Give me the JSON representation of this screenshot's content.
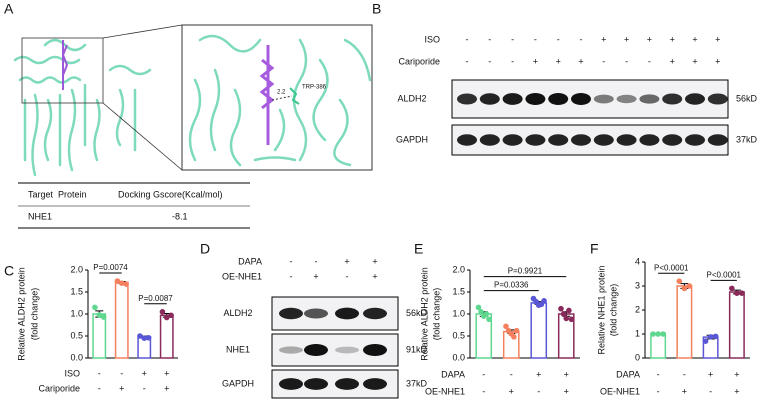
{
  "panels": [
    "A",
    "B",
    "C",
    "D",
    "E",
    "F"
  ],
  "docking": {
    "labels": [
      "TRP-386",
      "2.2"
    ],
    "table": {
      "header": [
        "Target  Protein",
        "Docking Gscore(Kcal/mol)"
      ],
      "rows": [
        [
          "NHE1",
          -8.1
        ]
      ]
    }
  },
  "blot_b": {
    "conditions": [
      {
        "name": "ISO",
        "signs": [
          "-",
          "-",
          "-",
          "-",
          "-",
          "-",
          "+",
          "+",
          "+",
          "+",
          "+",
          "+"
        ]
      },
      {
        "name": "Cariporide",
        "signs": [
          "-",
          "-",
          "-",
          "+",
          "+",
          "+",
          "-",
          "-",
          "-",
          "+",
          "+",
          "+"
        ]
      }
    ],
    "bands": [
      {
        "name": "ALDH2",
        "size": "56kD"
      },
      {
        "name": "GAPDH",
        "size": "37kD"
      }
    ]
  },
  "blot_d": {
    "conditions": [
      {
        "name": "DAPA",
        "signs": [
          "-",
          "-",
          "+",
          "+"
        ]
      },
      {
        "name": "OE-NHE1",
        "signs": [
          "-",
          "+",
          "-",
          "+"
        ]
      }
    ],
    "bands": [
      {
        "name": "ALDH2",
        "size": "56kD"
      },
      {
        "name": "NHE1",
        "size": "91kD"
      },
      {
        "name": "GAPDH",
        "size": "37kD"
      }
    ]
  },
  "chart_data": [
    {
      "type": "bar",
      "ylabel": [
        "Relative ALDH2 protein",
        "(fold change)"
      ],
      "values": [
        1.0,
        1.72,
        0.48,
        0.97
      ],
      "errors": [
        0.07,
        0.02,
        0.02,
        0.04
      ],
      "points": [
        [
          1.15,
          0.98,
          0.93
        ],
        [
          1.75,
          1.7,
          1.68
        ],
        [
          0.5,
          0.45,
          0.46
        ],
        [
          1.05,
          0.92,
          0.97
        ]
      ],
      "colors": [
        "#5ed88f",
        "#f4805e",
        "#5a57d6",
        "#8a2a5a"
      ],
      "ylim": [
        0,
        2
      ],
      "yticks": [
        {
          "value": 0,
          "label": "0.0"
        },
        {
          "value": 0.5,
          "label": "0.5"
        },
        {
          "value": 1,
          "label": "1.0"
        },
        {
          "value": 1.5,
          "label": "1.5"
        },
        {
          "value": 2,
          "label": "2.0"
        }
      ],
      "conditions": [
        {
          "name": "ISO",
          "signs": [
            "-",
            "-",
            "+",
            "+"
          ]
        },
        {
          "name": "Cariporide",
          "signs": [
            "-",
            "+",
            "-",
            "+"
          ]
        }
      ],
      "annotations": [
        {
          "label": "P=0.0074",
          "groups": [
            0,
            1
          ]
        },
        {
          "label": "P=0.0087",
          "groups": [
            2,
            3
          ]
        }
      ]
    },
    {
      "type": "bar",
      "ylabel": [
        "Relative ALDH2 protein",
        "(fold change)"
      ],
      "values": [
        1.0,
        0.6,
        1.25,
        1.0
      ],
      "errors": [
        0.05,
        0.04,
        0.03,
        0.05
      ],
      "points": [
        [
          1.15,
          1.05,
          0.95,
          1.0,
          0.88
        ],
        [
          0.72,
          0.62,
          0.55,
          0.48,
          0.62
        ],
        [
          1.35,
          1.28,
          1.2,
          1.22,
          1.3
        ],
        [
          1.12,
          1.0,
          0.9,
          1.08,
          0.88
        ]
      ],
      "colors": [
        "#5ed88f",
        "#f4805e",
        "#5a57d6",
        "#8a2a5a"
      ],
      "ylim": [
        0,
        2
      ],
      "yticks": [
        {
          "value": 0,
          "label": "0.0"
        },
        {
          "value": 0.5,
          "label": "0.5"
        },
        {
          "value": 1,
          "label": "1.0"
        },
        {
          "value": 1.5,
          "label": "1.5"
        },
        {
          "value": 2,
          "label": "2.0"
        }
      ],
      "conditions": [
        {
          "name": "DAPA",
          "signs": [
            "-",
            "-",
            "+",
            "+"
          ]
        },
        {
          "name": "OE-NHE1",
          "signs": [
            "-",
            "+",
            "-",
            "+"
          ]
        }
      ],
      "annotations": [
        {
          "label": "P=0.0336",
          "groups": [
            0,
            2
          ]
        },
        {
          "label": "P=0.9921",
          "groups": [
            0,
            3
          ]
        }
      ]
    },
    {
      "type": "bar",
      "ylabel": [
        "Relative NHE1 protein",
        "(fold change)"
      ],
      "values": [
        1.0,
        3.0,
        0.87,
        2.75
      ],
      "errors": [
        0.01,
        0.1,
        0.08,
        0.08
      ],
      "points": [
        [
          1.0,
          1.0,
          1.0
        ],
        [
          3.2,
          2.9,
          3.0
        ],
        [
          0.7,
          0.88,
          0.9
        ],
        [
          2.9,
          2.7,
          2.7
        ]
      ],
      "colors": [
        "#5ed88f",
        "#f4805e",
        "#5a57d6",
        "#8a2a5a"
      ],
      "ylim": [
        0,
        4
      ],
      "yticks": [
        0,
        1,
        2,
        3,
        4
      ],
      "conditions": [
        {
          "name": "DAPA",
          "signs": [
            "-",
            "-",
            "+",
            "+"
          ]
        },
        {
          "name": "OE-NHE1",
          "signs": [
            "-",
            "+",
            "-",
            "+"
          ]
        }
      ],
      "annotations": [
        {
          "label": "P<0.0001",
          "groups": [
            0,
            1
          ]
        },
        {
          "label": "P<0.0001",
          "groups": [
            2,
            3
          ]
        }
      ]
    }
  ]
}
